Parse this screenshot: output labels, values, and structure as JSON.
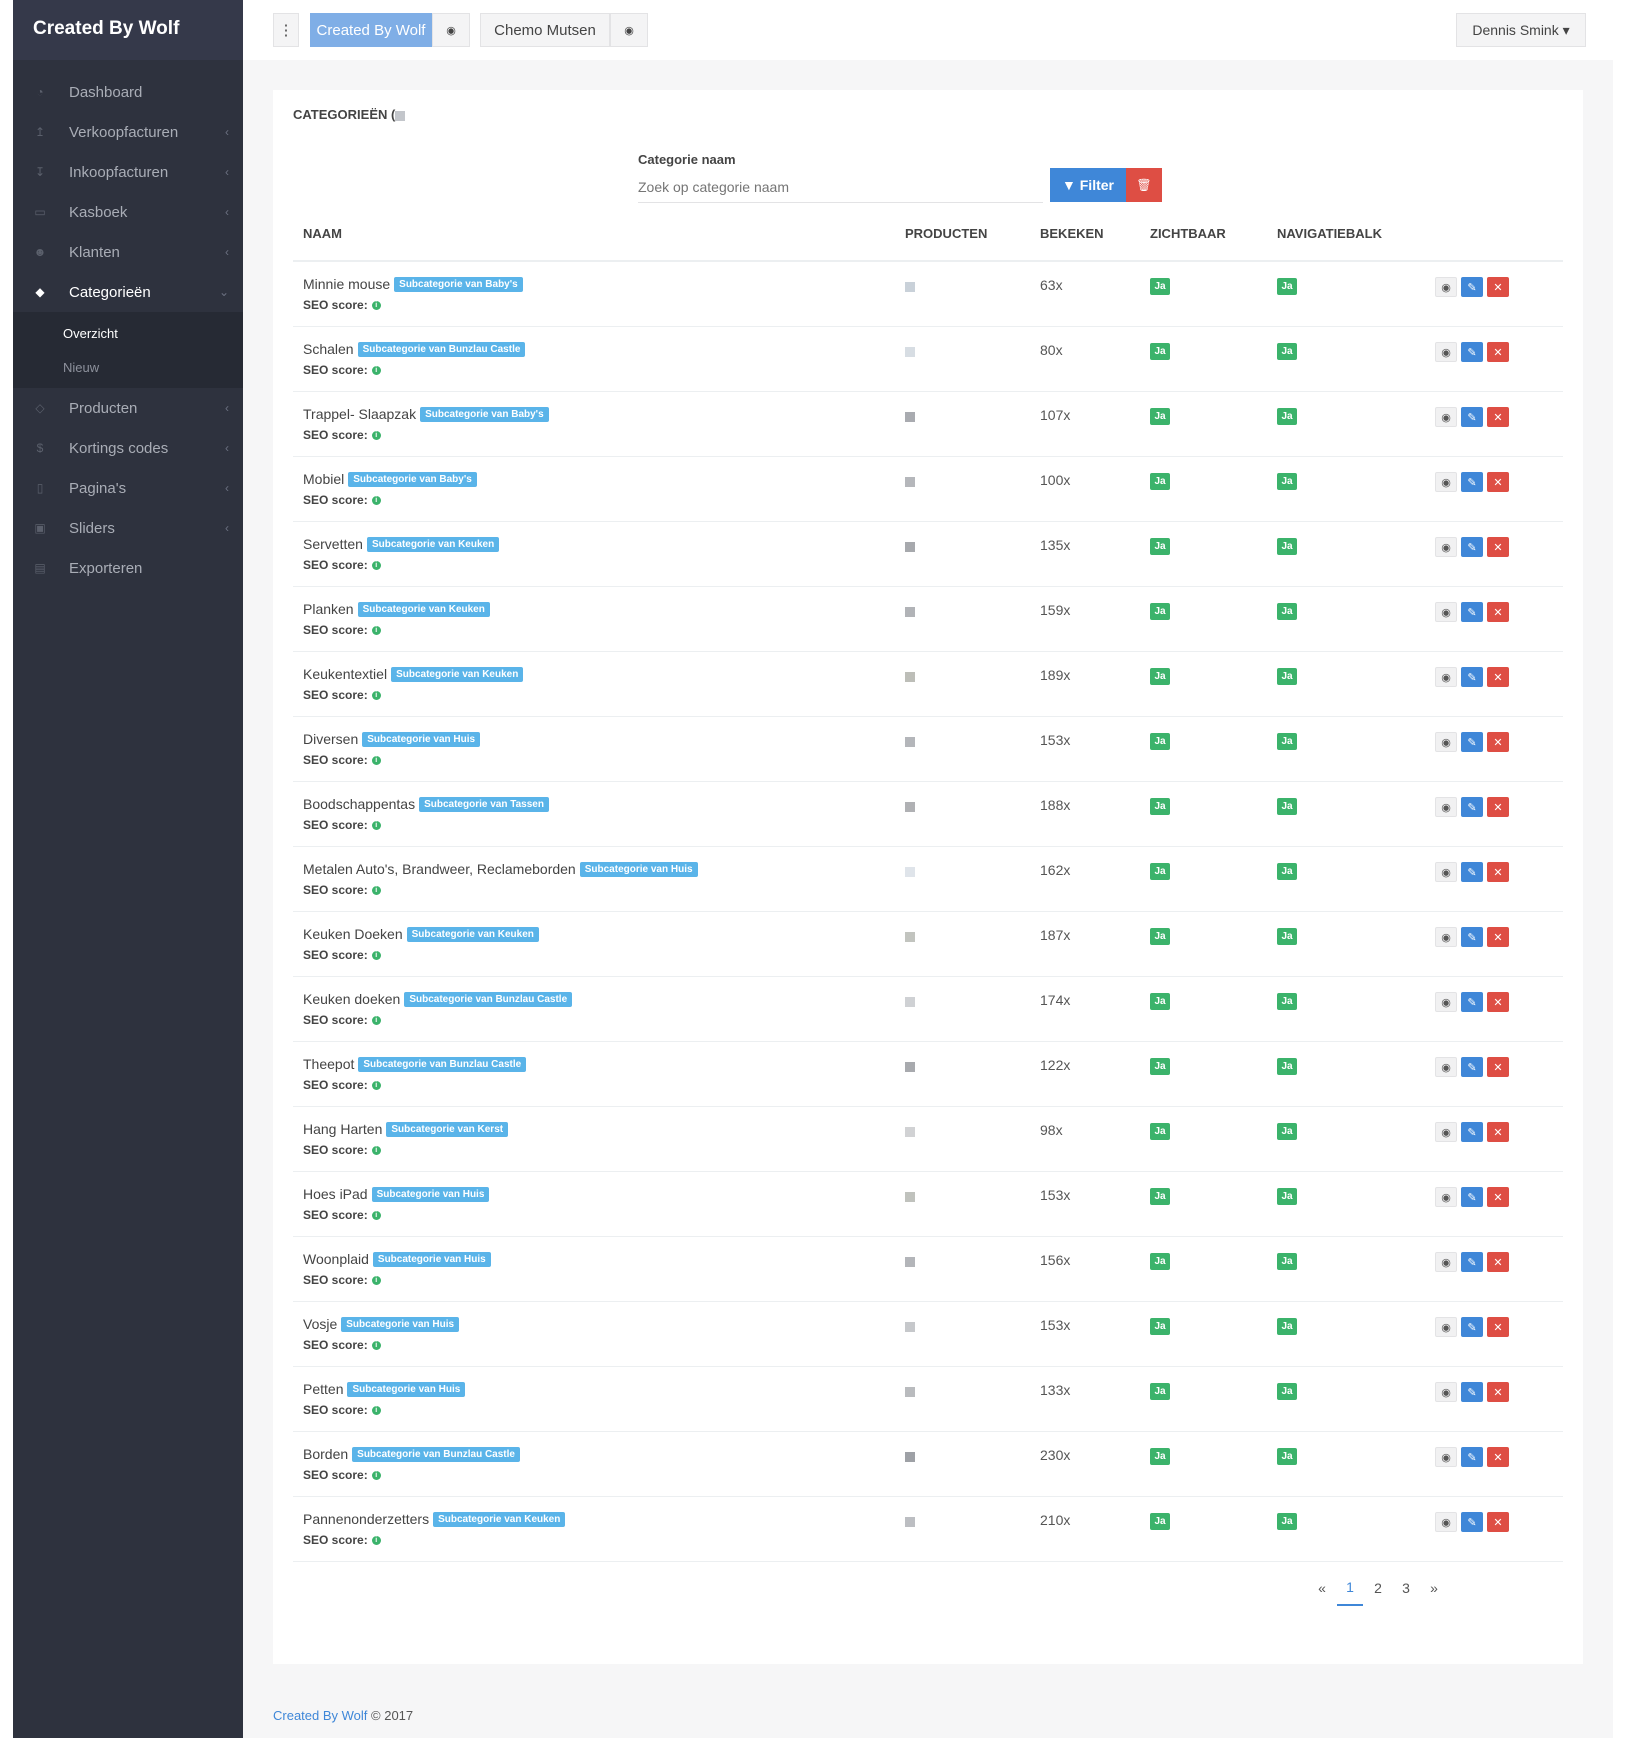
{
  "brand": "Created By Wolf",
  "sidebar": {
    "items": [
      {
        "label": "Dashboard",
        "icon": "dashboard-icon",
        "glyph": "◔",
        "chevron": false
      },
      {
        "label": "Verkoopfacturen",
        "icon": "upload-icon",
        "glyph": "↥",
        "chevron": true
      },
      {
        "label": "Inkoopfacturen",
        "icon": "download-icon",
        "glyph": "↧",
        "chevron": true
      },
      {
        "label": "Kasboek",
        "icon": "money-icon",
        "glyph": "▭",
        "chevron": true
      },
      {
        "label": "Klanten",
        "icon": "users-icon",
        "glyph": "☻",
        "chevron": true
      },
      {
        "label": "Categorieën",
        "icon": "cube-icon",
        "glyph": "◆",
        "chevron": true,
        "active": true
      },
      {
        "label": "Producten",
        "icon": "box-icon",
        "glyph": "◇",
        "chevron": true
      },
      {
        "label": "Kortings codes",
        "icon": "dollar-icon",
        "glyph": "$",
        "chevron": true
      },
      {
        "label": "Pagina's",
        "icon": "file-icon",
        "glyph": "▯",
        "chevron": true
      },
      {
        "label": "Sliders",
        "icon": "image-icon",
        "glyph": "▣",
        "chevron": true
      },
      {
        "label": "Exporteren",
        "icon": "export-icon",
        "glyph": "▤",
        "chevron": false
      }
    ],
    "sub_items": [
      "Overzicht",
      "Nieuw"
    ]
  },
  "topbar": {
    "menu_glyph": "⋮",
    "store1": "Created By Wolf",
    "store2": "Chemo Mutsen",
    "eye_glyph": "◉",
    "user": "Dennis Smink ▾"
  },
  "card": {
    "title": "CATEGORIEËN (",
    "filter_label": "Categorie naam",
    "filter_placeholder": "Zoek op categorie naam",
    "filter_button": "▼ Filter",
    "clear_glyph": "🗑"
  },
  "table": {
    "headers": {
      "naam": "NAAM",
      "producten": "PRODUCTEN",
      "bekeken": "BEKEKEN",
      "zichtbaar": "ZICHTBAAR",
      "navigatiebalk": "NAVIGATIEBALK"
    },
    "seo_label": "SEO score:",
    "ja_label": "Ja",
    "rows": [
      {
        "name": "Minnie mouse",
        "sub": "Subcategorie van Baby's",
        "views": "63x"
      },
      {
        "name": "Schalen",
        "sub": "Subcategorie van Bunzlau Castle",
        "views": "80x"
      },
      {
        "name": "Trappel- Slaapzak",
        "sub": "Subcategorie van Baby's",
        "views": "107x"
      },
      {
        "name": "Mobiel",
        "sub": "Subcategorie van Baby's",
        "views": "100x"
      },
      {
        "name": "Servetten",
        "sub": "Subcategorie van Keuken",
        "views": "135x"
      },
      {
        "name": "Planken",
        "sub": "Subcategorie van Keuken",
        "views": "159x"
      },
      {
        "name": "Keukentextiel",
        "sub": "Subcategorie van Keuken",
        "views": "189x"
      },
      {
        "name": "Diversen",
        "sub": "Subcategorie van Huis",
        "views": "153x"
      },
      {
        "name": "Boodschappentas",
        "sub": "Subcategorie van Tassen",
        "views": "188x"
      },
      {
        "name": "Metalen Auto's, Brandweer, Reclameborden",
        "sub": "Subcategorie van Huis",
        "views": "162x"
      },
      {
        "name": "Keuken Doeken",
        "sub": "Subcategorie van Keuken",
        "views": "187x"
      },
      {
        "name": "Keuken doeken",
        "sub": "Subcategorie van Bunzlau Castle",
        "views": "174x"
      },
      {
        "name": "Theepot",
        "sub": "Subcategorie van Bunzlau Castle",
        "views": "122x"
      },
      {
        "name": "Hang Harten",
        "sub": "Subcategorie van Kerst",
        "views": "98x"
      },
      {
        "name": "Hoes iPad",
        "sub": "Subcategorie van Huis",
        "views": "153x"
      },
      {
        "name": "Woonplaid",
        "sub": "Subcategorie van Huis",
        "views": "156x"
      },
      {
        "name": "Vosje",
        "sub": "Subcategorie van Huis",
        "views": "153x"
      },
      {
        "name": "Petten",
        "sub": "Subcategorie van Huis",
        "views": "133x"
      },
      {
        "name": "Borden",
        "sub": "Subcategorie van Bunzlau Castle",
        "views": "230x"
      },
      {
        "name": "Pannenonderzetters",
        "sub": "Subcategorie van Keuken",
        "views": "210x"
      }
    ]
  },
  "pagination": [
    "«",
    "1",
    "2",
    "3",
    "»"
  ],
  "footer": {
    "link": "Created By Wolf",
    "text": " © 2017"
  },
  "colors": {
    "primary": "#3f87d8",
    "danger": "#de4e44",
    "success": "#3bb36b",
    "badge": "#5ab4e9",
    "sidebar": "#2e323e"
  }
}
